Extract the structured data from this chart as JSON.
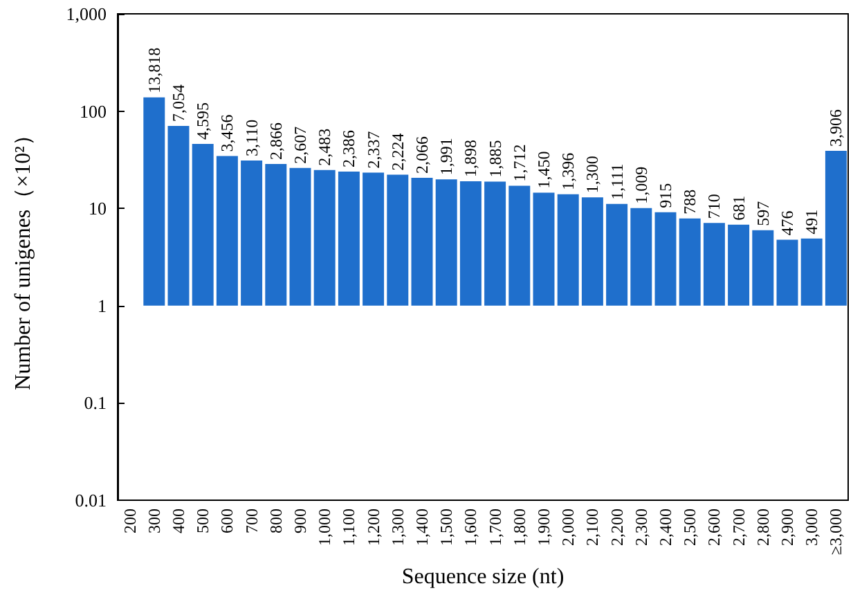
{
  "chart_data": {
    "type": "bar",
    "xlabel": "Sequence size (nt)",
    "ylabel": "Number of unigenes（×10²）",
    "categories": [
      "200",
      "300",
      "400",
      "500",
      "600",
      "700",
      "800",
      "900",
      "1,000",
      "1,100",
      "1,200",
      "1,300",
      "1,400",
      "1,500",
      "1,600",
      "1,700",
      "1,800",
      "1,900",
      "2,000",
      "2,100",
      "2,200",
      "2,300",
      "2,400",
      "2,500",
      "2,600",
      "2,700",
      "2,800",
      "2,900",
      "3,000",
      "≥3,000"
    ],
    "base": [
      null,
      1,
      1,
      1,
      1,
      1,
      1,
      1,
      1,
      1,
      1,
      1,
      1,
      1,
      1,
      1,
      1,
      1,
      1,
      1,
      1,
      1,
      1,
      1,
      1,
      1,
      1,
      1,
      1,
      1
    ],
    "values": [
      null,
      137.18,
      69.54,
      44.95,
      33.56,
      30.1,
      27.66,
      25.07,
      23.83,
      22.86,
      22.37,
      21.24,
      19.66,
      18.91,
      17.98,
      17.85,
      16.12,
      13.5,
      12.96,
      12.0,
      10.11,
      9.09,
      8.15,
      6.88,
      6.1,
      5.81,
      4.97,
      3.76,
      3.91,
      38.06
    ],
    "annotations": [
      {
        "text": "13,818",
        "x": "300",
        "y": 138.18
      },
      {
        "text": "7,054",
        "x": "400",
        "y": 70.54
      },
      {
        "text": "4,595",
        "x": "500",
        "y": 45.95
      },
      {
        "text": "3,456",
        "x": "600",
        "y": 34.56
      },
      {
        "text": "3,110",
        "x": "700",
        "y": 31.1
      },
      {
        "text": "2,866",
        "x": "800",
        "y": 28.66
      },
      {
        "text": "2,607",
        "x": "900",
        "y": 26.07
      },
      {
        "text": "2,483",
        "x": "1,000",
        "y": 24.83
      },
      {
        "text": "2,386",
        "x": "1,100",
        "y": 23.86
      },
      {
        "text": "2,337",
        "x": "1,200",
        "y": 23.37
      },
      {
        "text": "2,224",
        "x": "1,300",
        "y": 22.24
      },
      {
        "text": "2,066",
        "x": "1,400",
        "y": 20.66
      },
      {
        "text": "1,991",
        "x": "1,500",
        "y": 19.91
      },
      {
        "text": "1,898",
        "x": "1,600",
        "y": 18.98
      },
      {
        "text": "1,885",
        "x": "1,700",
        "y": 18.85
      },
      {
        "text": "1,712",
        "x": "1,800",
        "y": 17.12
      },
      {
        "text": "1,450",
        "x": "1,900",
        "y": 14.5
      },
      {
        "text": "1,396",
        "x": "2,000",
        "y": 13.96
      },
      {
        "text": "1,300",
        "x": "2,100",
        "y": 13.0
      },
      {
        "text": "1,111",
        "x": "2,200",
        "y": 11.11
      },
      {
        "text": "1,009",
        "x": "2,300",
        "y": 10.09
      },
      {
        "text": "915",
        "x": "2,400",
        "y": 9.15
      },
      {
        "text": "788",
        "x": "2,500",
        "y": 7.88
      },
      {
        "text": "710",
        "x": "2,600",
        "y": 7.1
      },
      {
        "text": "681",
        "x": "2,700",
        "y": 6.81
      },
      {
        "text": "597",
        "x": "2,800",
        "y": 5.97
      },
      {
        "text": "476",
        "x": "2,900",
        "y": 4.76
      },
      {
        "text": "491",
        "x": "3,000",
        "y": 4.91
      },
      {
        "text": "3,906",
        "x": "≥3,000",
        "y": 39.06
      }
    ],
    "color": "#1f6fcc",
    "log": "y",
    "ylim": [
      0.01,
      1000
    ],
    "yticks": [
      0.01,
      0.1,
      1,
      10,
      100,
      {
        "value": 1000,
        "label": "1,000"
      }
    ],
    "grid": false
  }
}
